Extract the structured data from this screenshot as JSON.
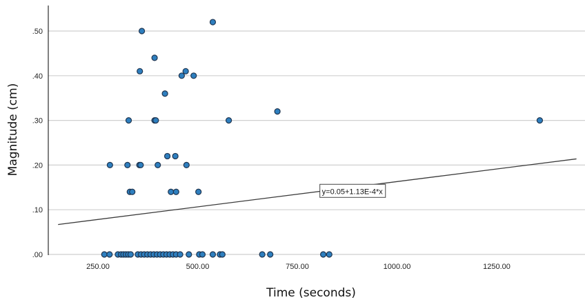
{
  "chart_data": {
    "type": "scatter",
    "xlabel": "Time (seconds)",
    "ylabel": "Magnitude (cm)",
    "xlim": [
      150,
      1450
    ],
    "ylim": [
      0,
      0.55
    ],
    "x_ticks": [
      250,
      500,
      750,
      1000,
      1250
    ],
    "x_tick_labels": [
      "250.00",
      "500.00",
      "750.00",
      "1000.00",
      "1250.00"
    ],
    "y_ticks": [
      0,
      0.1,
      0.2,
      0.3,
      0.4,
      0.5
    ],
    "y_tick_labels": [
      ".00",
      ".10",
      ".20",
      ".30",
      ".40",
      ".50"
    ],
    "grid": "horizontal",
    "point_color": "#2e7fbf",
    "fit_line": {
      "intercept": 0.05,
      "slope": 0.000113,
      "label": "y=0.05+1.13E-4*x"
    },
    "series": [
      {
        "points": [
          [
            360,
            0.5
          ],
          [
            538,
            0.52
          ],
          [
            392,
            0.44
          ],
          [
            355,
            0.41
          ],
          [
            470,
            0.41
          ],
          [
            460,
            0.4
          ],
          [
            490,
            0.4
          ],
          [
            418,
            0.36
          ],
          [
            327,
            0.3
          ],
          [
            392,
            0.3
          ],
          [
            395,
            0.3
          ],
          [
            578,
            0.3
          ],
          [
            700,
            0.32
          ],
          [
            1358,
            0.3
          ],
          [
            424,
            0.22
          ],
          [
            444,
            0.22
          ],
          [
            280,
            0.2
          ],
          [
            324,
            0.2
          ],
          [
            354,
            0.2
          ],
          [
            357,
            0.2
          ],
          [
            400,
            0.2
          ],
          [
            472,
            0.2
          ],
          [
            330,
            0.14
          ],
          [
            336,
            0.14
          ],
          [
            433,
            0.14
          ],
          [
            446,
            0.14
          ],
          [
            502,
            0.14
          ],
          [
            266,
            0
          ],
          [
            279,
            0
          ],
          [
            300,
            0
          ],
          [
            308,
            0
          ],
          [
            314,
            0
          ],
          [
            320,
            0
          ],
          [
            326,
            0
          ],
          [
            332,
            0
          ],
          [
            350,
            0
          ],
          [
            358,
            0
          ],
          [
            366,
            0
          ],
          [
            374,
            0
          ],
          [
            382,
            0
          ],
          [
            390,
            0
          ],
          [
            398,
            0
          ],
          [
            406,
            0
          ],
          [
            414,
            0
          ],
          [
            422,
            0
          ],
          [
            430,
            0
          ],
          [
            438,
            0
          ],
          [
            446,
            0
          ],
          [
            456,
            0
          ],
          [
            478,
            0
          ],
          [
            504,
            0
          ],
          [
            512,
            0
          ],
          [
            538,
            0
          ],
          [
            556,
            0
          ],
          [
            562,
            0
          ],
          [
            662,
            0
          ],
          [
            682,
            0
          ],
          [
            815,
            0
          ],
          [
            830,
            0
          ]
        ]
      }
    ]
  }
}
